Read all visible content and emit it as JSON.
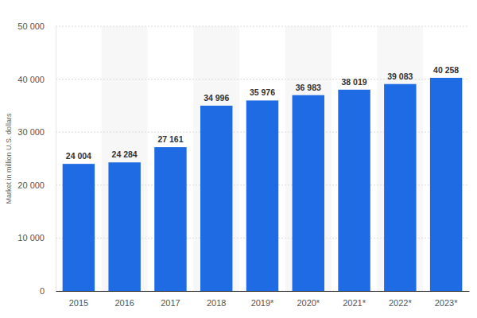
{
  "chart_data": {
    "type": "bar",
    "y_label": "Market in million U.S. dollars",
    "categories": [
      "2015",
      "2016",
      "2017",
      "2018",
      "2019*",
      "2020*",
      "2021*",
      "2022*",
      "2023*"
    ],
    "values": [
      24004,
      24284,
      27161,
      34996,
      35976,
      36983,
      38019,
      39083,
      40258
    ],
    "value_labels": [
      "24 004",
      "24 284",
      "27 161",
      "34 996",
      "35 976",
      "36 983",
      "38 019",
      "39 083",
      "40 258"
    ],
    "data_labels": true,
    "color": "#1f6be3",
    "ylim": [
      0,
      50000
    ],
    "yticks": [
      0,
      {
        "value": 10000,
        "label": "10 000"
      },
      {
        "value": 20000,
        "label": "20 000"
      },
      {
        "value": 30000,
        "label": "30 000"
      },
      {
        "value": 40000,
        "label": "40 000"
      },
      {
        "value": 50000,
        "label": "50 000"
      }
    ],
    "grid": true
  }
}
